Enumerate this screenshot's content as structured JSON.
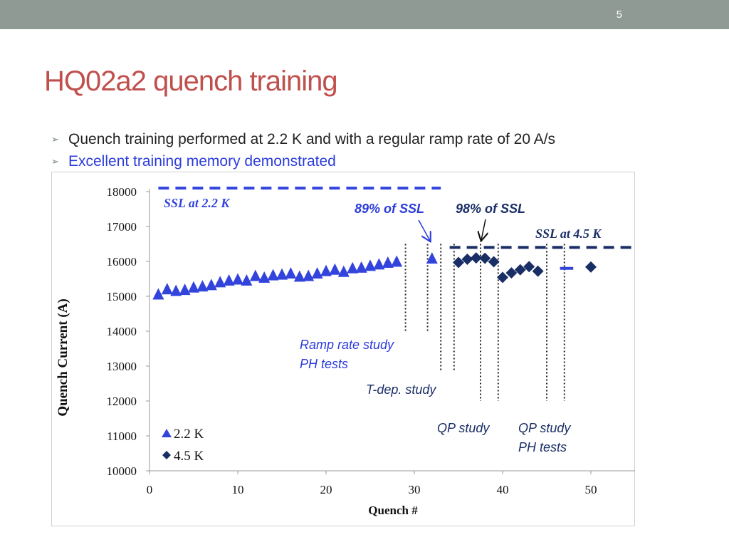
{
  "slide": {
    "number": "5",
    "title": "HQ02a2 quench training",
    "bullets": [
      {
        "text": "Quench training performed at 2.2 K and with a regular ramp rate of 20 A/s",
        "color": "#222222"
      },
      {
        "text": "Excellent training memory demonstrated",
        "color": "#2b3bdc"
      }
    ],
    "bullet_icon": "arrowhead-bullet-icon"
  },
  "chart_data": {
    "type": "scatter",
    "xlabel": "Quench #",
    "ylabel": "Quench Current (A)",
    "xlim": [
      0,
      55
    ],
    "ylim": [
      10000,
      18000
    ],
    "x_ticks": [
      0,
      10,
      20,
      30,
      40,
      50
    ],
    "y_ticks": [
      10000,
      11000,
      12000,
      13000,
      14000,
      15000,
      16000,
      17000,
      18000
    ],
    "grid": false,
    "legend_position": "bottom-left",
    "series": [
      {
        "name": "2.2 K",
        "marker": "triangle",
        "color": "#3344dd",
        "x": [
          1,
          2,
          3,
          4,
          5,
          6,
          7,
          8,
          9,
          10,
          11,
          12,
          13,
          14,
          15,
          16,
          17,
          18,
          19,
          20,
          21,
          22,
          23,
          24,
          25,
          26,
          27,
          28,
          32
        ],
        "y": [
          15050,
          15200,
          15150,
          15180,
          15250,
          15280,
          15320,
          15400,
          15450,
          15480,
          15450,
          15580,
          15530,
          15600,
          15620,
          15650,
          15560,
          15580,
          15650,
          15720,
          15760,
          15700,
          15800,
          15820,
          15870,
          15910,
          15960,
          15990,
          16080
        ]
      },
      {
        "name": "4.5 K",
        "marker": "diamond",
        "color": "#1a2e66",
        "x": [
          35,
          36,
          37,
          38,
          39,
          40,
          41,
          42,
          43,
          44,
          50
        ],
        "y": [
          15970,
          16060,
          16100,
          16090,
          15990,
          15540,
          15670,
          15760,
          15850,
          15720,
          15840
        ]
      }
    ],
    "reference_lines": [
      {
        "label": "SSL at 2.2 K",
        "y": 18100,
        "x_range": [
          1,
          33
        ],
        "color": "#3344dd",
        "style": "dashed"
      },
      {
        "label": "SSL at 4.5 K",
        "y": 16400,
        "x_range": [
          34,
          55
        ],
        "color": "#1a2e66",
        "style": "dashed"
      },
      {
        "label": "",
        "y": 15800,
        "x_range": [
          46.5,
          48
        ],
        "color": "#3344dd",
        "style": "solid"
      }
    ],
    "vertical_markers": [
      {
        "x": 29,
        "y_bottom": 14000
      },
      {
        "x": 31.5,
        "y_bottom": 14000
      },
      {
        "x": 33,
        "y_bottom": 12830
      },
      {
        "x": 34.5,
        "y_bottom": 12830
      },
      {
        "x": 37.5,
        "y_bottom": 12000
      },
      {
        "x": 39.5,
        "y_bottom": 12000
      },
      {
        "x": 45,
        "y_bottom": 12000
      },
      {
        "x": 47,
        "y_bottom": 12000
      }
    ],
    "annotations": [
      {
        "text": "89% of SSL",
        "color": "#2b3bdc"
      },
      {
        "text": "98% of SSL",
        "color": "#1a2e66"
      },
      {
        "text": "Ramp rate study",
        "color": "#2b3bdc"
      },
      {
        "text": "PH tests",
        "color": "#2b3bdc"
      },
      {
        "text": "T-dep. study",
        "color": "#1a2e66"
      },
      {
        "text": "QP study",
        "color": "#1a2e66"
      },
      {
        "text": "QP study",
        "color": "#1a2e66"
      },
      {
        "text": "PH tests",
        "color": "#1a2e66"
      }
    ]
  }
}
